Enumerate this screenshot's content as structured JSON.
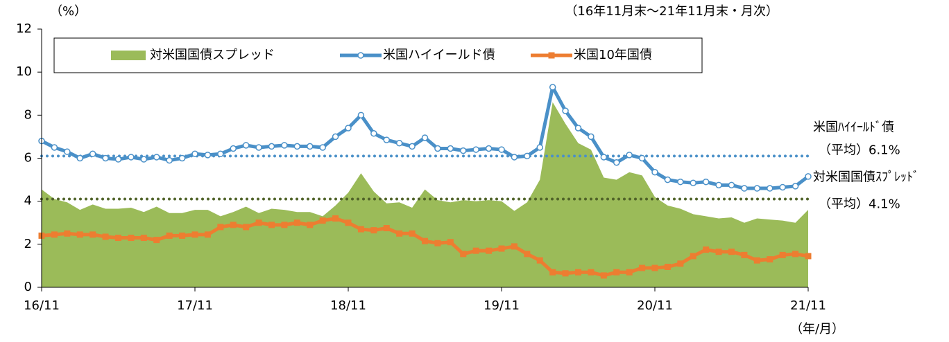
{
  "chart_data": {
    "type": "line",
    "unit_label": "（%）",
    "subtitle": "（16年11月末～21年11月末・月次）",
    "x_axis_label": "（年/月）",
    "categories": [
      "16/11",
      null,
      null,
      null,
      null,
      null,
      null,
      null,
      null,
      null,
      null,
      null,
      "17/11",
      null,
      null,
      null,
      null,
      null,
      null,
      null,
      null,
      null,
      null,
      null,
      "18/11",
      null,
      null,
      null,
      null,
      null,
      null,
      null,
      null,
      null,
      null,
      null,
      "19/11",
      null,
      null,
      null,
      null,
      null,
      null,
      null,
      null,
      null,
      null,
      null,
      "20/11",
      null,
      null,
      null,
      null,
      null,
      null,
      null,
      null,
      null,
      null,
      null,
      "21/11"
    ],
    "ylim": [
      0,
      12
    ],
    "yticks": [
      0,
      2,
      4,
      6,
      8,
      10,
      12
    ],
    "series": [
      {
        "name": "対米国国債スプレッド",
        "kind": "area",
        "color": "#9bbb59",
        "values": [
          4.55,
          4.1,
          3.95,
          3.6,
          3.85,
          3.65,
          3.65,
          3.7,
          3.5,
          3.75,
          3.45,
          3.45,
          3.6,
          3.6,
          3.3,
          3.5,
          3.75,
          3.45,
          3.65,
          3.6,
          3.5,
          3.5,
          3.3,
          3.8,
          4.4,
          5.3,
          4.45,
          3.9,
          3.95,
          3.7,
          4.55,
          4.05,
          3.95,
          4.05,
          4.0,
          4.05,
          4.0,
          3.55,
          3.95,
          5.0,
          8.6,
          7.6,
          6.7,
          6.4,
          5.1,
          5.0,
          5.35,
          5.2,
          4.2,
          3.8,
          3.65,
          3.4,
          3.3,
          3.2,
          3.25,
          3.0,
          3.2,
          3.15,
          3.1,
          3.0,
          3.6
        ]
      },
      {
        "name": "米国ハイイールド債",
        "kind": "line",
        "marker": "circle",
        "color": "#4a90c8",
        "values": [
          6.8,
          6.5,
          6.3,
          6.0,
          6.2,
          6.0,
          5.95,
          6.05,
          5.95,
          6.05,
          5.9,
          6.0,
          6.2,
          6.15,
          6.2,
          6.45,
          6.6,
          6.5,
          6.55,
          6.6,
          6.55,
          6.55,
          6.5,
          7.0,
          7.4,
          8.0,
          7.15,
          6.85,
          6.7,
          6.55,
          6.95,
          6.45,
          6.45,
          6.35,
          6.4,
          6.45,
          6.4,
          6.05,
          6.1,
          6.5,
          9.3,
          8.2,
          7.4,
          7.0,
          6.05,
          5.8,
          6.15,
          6.0,
          5.35,
          5.0,
          4.9,
          4.85,
          4.9,
          4.75,
          4.75,
          4.6,
          4.6,
          4.6,
          4.65,
          4.7,
          5.15
        ]
      },
      {
        "name": "米国10年国債",
        "kind": "line",
        "marker": "square",
        "color": "#ed7d31",
        "values": [
          2.4,
          2.45,
          2.5,
          2.45,
          2.45,
          2.35,
          2.3,
          2.3,
          2.3,
          2.2,
          2.4,
          2.4,
          2.45,
          2.45,
          2.8,
          2.9,
          2.8,
          3.0,
          2.9,
          2.9,
          3.0,
          2.9,
          3.1,
          3.2,
          3.0,
          2.7,
          2.65,
          2.75,
          2.5,
          2.5,
          2.15,
          2.05,
          2.1,
          1.55,
          1.7,
          1.7,
          1.8,
          1.9,
          1.55,
          1.25,
          0.7,
          0.65,
          0.7,
          0.7,
          0.55,
          0.7,
          0.7,
          0.9,
          0.9,
          0.95,
          1.1,
          1.45,
          1.75,
          1.65,
          1.65,
          1.5,
          1.25,
          1.3,
          1.5,
          1.55,
          1.45
        ]
      }
    ],
    "averages": [
      {
        "name": "米国ﾊｲｲｰﾙﾄﾞ債",
        "label": "（平均）6.1%",
        "value": 6.1,
        "color": "#4a90c8",
        "text_color": "#4a90c8"
      },
      {
        "name": "対米国国債ｽﾌﾟﾚｯﾄﾞ",
        "label": "（平均）4.1%",
        "value": 4.1,
        "color": "#4f6228",
        "text_color": "#4f6228"
      }
    ]
  }
}
